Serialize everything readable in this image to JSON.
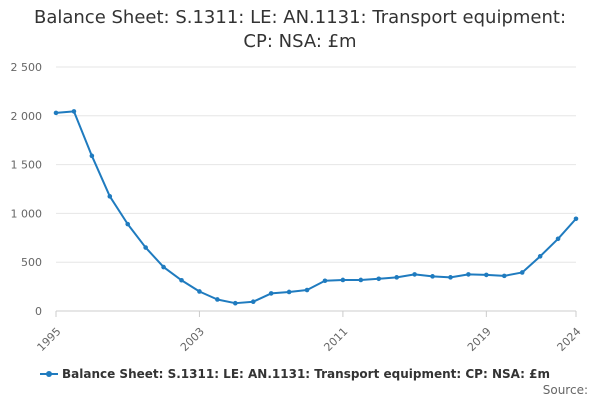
{
  "chart_data": {
    "type": "line",
    "title": "Balance Sheet: S.1311: LE: AN.1131: Transport equipment: CP: NSA: £m",
    "x_ticks": [
      "1995",
      "2003",
      "2011",
      "2019",
      "2024"
    ],
    "y_ticks": [
      "0",
      "500",
      "1 000",
      "1 500",
      "2 000",
      "2 500"
    ],
    "xlim": [
      1995,
      2024
    ],
    "ylim": [
      0,
      2500
    ],
    "grid": true,
    "legend_position": "bottom-left",
    "series": [
      {
        "name": "Balance Sheet: S.1311: LE: AN.1131: Transport equipment: CP: NSA: £m",
        "color": "#1f7bbf",
        "x": [
          1995,
          1996,
          1997,
          1998,
          1999,
          2000,
          2001,
          2002,
          2003,
          2004,
          2005,
          2006,
          2007,
          2008,
          2009,
          2010,
          2011,
          2012,
          2013,
          2014,
          2015,
          2016,
          2017,
          2018,
          2019,
          2020,
          2021,
          2022,
          2023,
          2024
        ],
        "values": [
          2030,
          2045,
          1590,
          1175,
          890,
          650,
          450,
          315,
          200,
          118,
          80,
          95,
          180,
          195,
          215,
          310,
          318,
          318,
          330,
          345,
          375,
          355,
          345,
          375,
          370,
          360,
          395,
          560,
          740,
          945
        ]
      }
    ]
  },
  "footer": {
    "source_label": "Source:"
  }
}
